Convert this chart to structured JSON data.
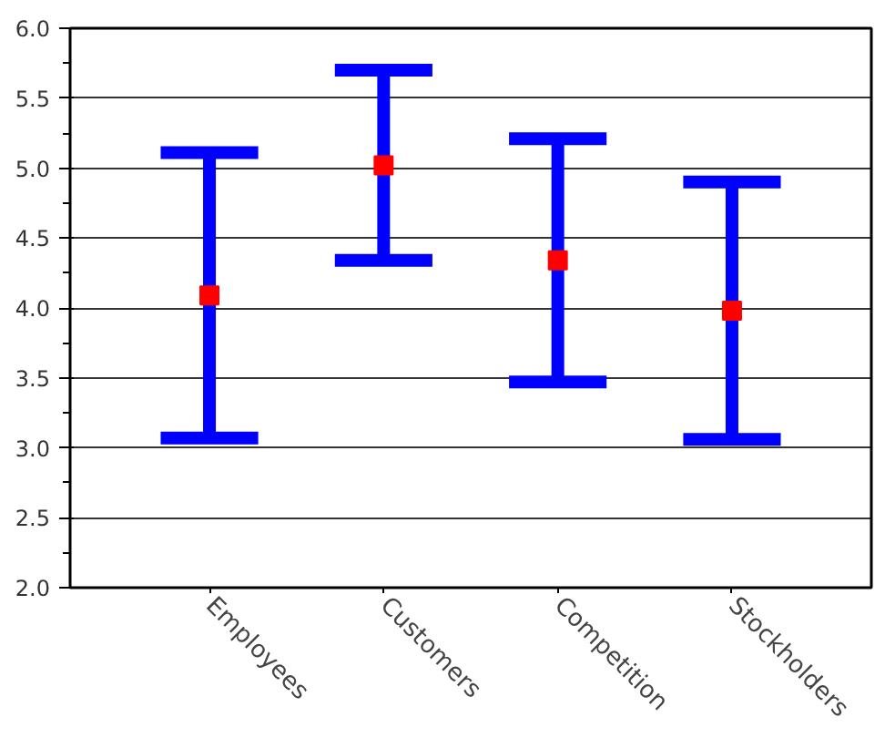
{
  "chart_data": {
    "type": "scatter",
    "categories": [
      "Employees",
      "Customers",
      "Competition",
      "Stockholders"
    ],
    "series": [
      {
        "color": "#ff0000",
        "values": [
          4.09,
          5.02,
          4.34,
          3.98
        ],
        "errors": [
          1.02,
          0.68,
          0.87,
          0.92
        ]
      }
    ],
    "ylim": [
      2.0,
      6.0
    ],
    "yticks": [
      {
        "value": 2.0,
        "label": "2.0"
      },
      {
        "value": 2.5,
        "label": "2.5"
      },
      {
        "value": 3.0,
        "label": "3.0"
      },
      {
        "value": 3.5,
        "label": "3.5"
      },
      {
        "value": 4.0,
        "label": "4.0"
      },
      {
        "value": 4.5,
        "label": "4.5"
      },
      {
        "value": 5.0,
        "label": "5.0"
      },
      {
        "value": 5.5,
        "label": "5.5"
      },
      {
        "value": 6.0,
        "label": "6.0"
      }
    ],
    "grid": "y",
    "marker": "square"
  }
}
